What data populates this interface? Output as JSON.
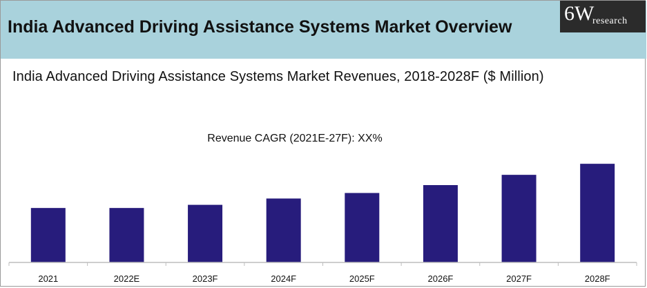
{
  "header": {
    "title": "India Advanced Driving Assistance Systems Market Overview",
    "logo_main": "6W",
    "logo_sub": "research"
  },
  "colors": {
    "banner": "#a9d2dc",
    "bar": "#271c7c",
    "logo_bg": "#2b2b2b"
  },
  "chart_data": {
    "type": "bar",
    "title": "India Advanced Driving Assistance Systems Market Revenues, 2018-2028F  ($ Million)",
    "annotation": "Revenue CAGR (2021E-27F): XX%",
    "categories": [
      "2021",
      "2022E",
      "2023F",
      "2024F",
      "2025F",
      "2026F",
      "2027F",
      "2028F"
    ],
    "values": [
      69,
      69,
      73,
      81,
      88,
      98,
      111,
      125
    ],
    "ylim": [
      0,
      140
    ],
    "grid": false,
    "legend": "none",
    "xlabel": "",
    "ylabel": ""
  }
}
